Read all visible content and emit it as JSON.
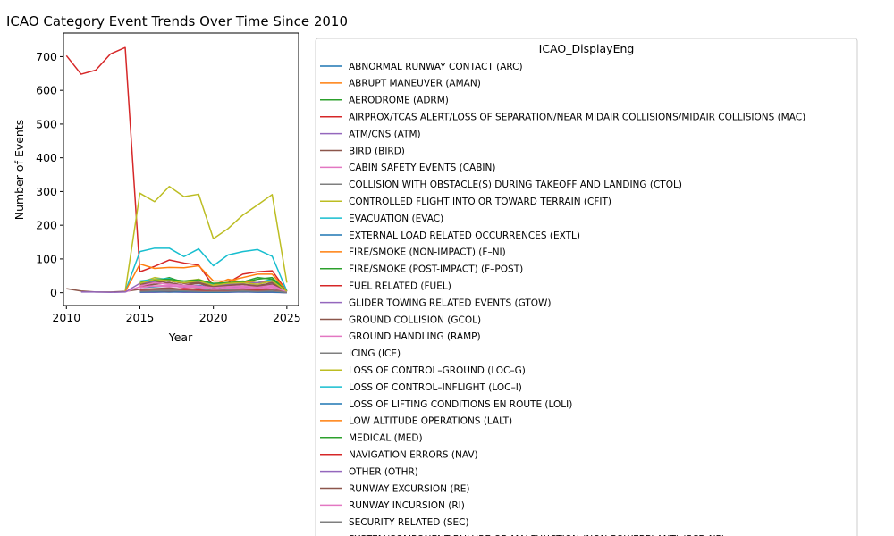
{
  "chart_data": {
    "type": "line",
    "title": "ICAO Category Event Trends Over Time Since 2010",
    "xlabel": "Year",
    "ylabel": "Number of Events",
    "xlim": [
      2009.8,
      2025.8
    ],
    "ylim": [
      -38,
      770
    ],
    "xticks": [
      2010,
      2015,
      2020,
      2025
    ],
    "yticks": [
      0,
      100,
      200,
      300,
      400,
      500,
      600,
      700
    ],
    "legend_title": "ICAO_DisplayEng",
    "legend_position": "right, outside plot",
    "grid": false,
    "series": [
      {
        "name": "ABNORMAL RUNWAY CONTACT (ARC)",
        "color": "#1f77b4",
        "x": [
          2015,
          2016,
          2017,
          2018,
          2019,
          2020,
          2021,
          2022,
          2023,
          2024,
          2025
        ],
        "y": [
          15,
          18,
          20,
          17,
          22,
          14,
          18,
          16,
          20,
          22,
          3
        ]
      },
      {
        "name": "ABRUPT MANEUVER (AMAN)",
        "color": "#ff7f0e",
        "x": [
          2015,
          2016,
          2017,
          2018,
          2019,
          2020,
          2021,
          2022,
          2023,
          2024,
          2025
        ],
        "y": [
          2,
          3,
          2,
          3,
          2,
          2,
          3,
          2,
          3,
          2,
          0
        ]
      },
      {
        "name": "AERODROME (ADRM)",
        "color": "#2ca02c",
        "x": [
          2015,
          2016,
          2017,
          2018,
          2019,
          2020,
          2021,
          2022,
          2023,
          2024,
          2025
        ],
        "y": [
          25,
          35,
          45,
          30,
          40,
          20,
          25,
          30,
          40,
          45,
          5
        ]
      },
      {
        "name": "AIRPROX/TCAS ALERT/LOSS OF SEPARATION/NEAR MIDAIR COLLISIONS/MIDAIR COLLISIONS (MAC)",
        "color": "#d62728",
        "x": [
          2010,
          2011,
          2012,
          2013,
          2014,
          2015,
          2016,
          2017,
          2018,
          2019,
          2020,
          2021,
          2022,
          2023,
          2024,
          2025
        ],
        "y": [
          703,
          648,
          660,
          708,
          727,
          62,
          78,
          97,
          88,
          82,
          20,
          30,
          55,
          62,
          65,
          5
        ]
      },
      {
        "name": "ATM/CNS (ATM)",
        "color": "#9467bd",
        "x": [
          2015,
          2016,
          2017,
          2018,
          2019,
          2020,
          2021,
          2022,
          2023,
          2024,
          2025
        ],
        "y": [
          20,
          25,
          30,
          22,
          28,
          15,
          20,
          25,
          22,
          28,
          3
        ]
      },
      {
        "name": "BIRD (BIRD)",
        "color": "#8c564b",
        "x": [
          2010,
          2011,
          2012,
          2013,
          2014,
          2015,
          2016,
          2017,
          2018,
          2019,
          2020,
          2021,
          2022,
          2023,
          2024,
          2025
        ],
        "y": [
          12,
          5,
          2,
          2,
          4,
          10,
          12,
          14,
          10,
          12,
          8,
          10,
          12,
          14,
          16,
          2
        ]
      },
      {
        "name": "CABIN SAFETY EVENTS (CABIN)",
        "color": "#e377c2",
        "x": [
          2014,
          2015,
          2016,
          2017,
          2018,
          2019,
          2020,
          2021,
          2022,
          2023,
          2024,
          2025
        ],
        "y": [
          2,
          18,
          20,
          22,
          15,
          18,
          10,
          14,
          16,
          12,
          15,
          2
        ]
      },
      {
        "name": "COLLISION WITH OBSTACLE(S) DURING TAKEOFF AND LANDING (CTOL)",
        "color": "#7f7f7f",
        "x": [
          2015,
          2016,
          2017,
          2018,
          2019,
          2020,
          2021,
          2022,
          2023,
          2024,
          2025
        ],
        "y": [
          5,
          6,
          8,
          5,
          7,
          4,
          6,
          5,
          7,
          6,
          1
        ]
      },
      {
        "name": "CONTROLLED FLIGHT INTO OR TOWARD TERRAIN (CFIT)",
        "color": "#bcbd22",
        "x": [
          2014,
          2015,
          2016,
          2017,
          2018,
          2019,
          2020,
          2021,
          2022,
          2023,
          2024,
          2025
        ],
        "y": [
          4,
          295,
          270,
          315,
          285,
          292,
          160,
          190,
          230,
          260,
          291,
          30
        ]
      },
      {
        "name": "EVACUATION (EVAC)",
        "color": "#17becf",
        "x": [
          2014,
          2015,
          2016,
          2017,
          2018,
          2019,
          2020,
          2021,
          2022,
          2023,
          2024,
          2025
        ],
        "y": [
          3,
          122,
          132,
          132,
          107,
          130,
          80,
          112,
          122,
          128,
          108,
          5
        ]
      },
      {
        "name": "EXTERNAL LOAD RELATED OCCURRENCES (EXTL)",
        "color": "#1f77b4",
        "x": [
          2015,
          2016,
          2017,
          2018,
          2019,
          2020,
          2021,
          2022,
          2023,
          2024,
          2025
        ],
        "y": [
          3,
          4,
          3,
          5,
          4,
          3,
          4,
          3,
          5,
          4,
          1
        ]
      },
      {
        "name": "FIRE/SMOKE (NON-IMPACT) (F–NI)",
        "color": "#ff7f0e",
        "x": [
          2014,
          2015,
          2016,
          2017,
          2018,
          2019,
          2020,
          2021,
          2022,
          2023,
          2024,
          2025
        ],
        "y": [
          3,
          85,
          72,
          75,
          74,
          80,
          35,
          35,
          45,
          55,
          55,
          5
        ]
      },
      {
        "name": "FIRE/SMOKE (POST-IMPACT) (F–POST)",
        "color": "#2ca02c",
        "x": [
          2015,
          2016,
          2017,
          2018,
          2019,
          2020,
          2021,
          2022,
          2023,
          2024,
          2025
        ],
        "y": [
          4,
          5,
          6,
          4,
          5,
          3,
          4,
          5,
          4,
          5,
          1
        ]
      },
      {
        "name": "FUEL RELATED (FUEL)",
        "color": "#d62728",
        "x": [
          2015,
          2016,
          2017,
          2018,
          2019,
          2020,
          2021,
          2022,
          2023,
          2024,
          2025
        ],
        "y": [
          8,
          10,
          8,
          12,
          10,
          6,
          8,
          10,
          12,
          10,
          2
        ]
      },
      {
        "name": "GLIDER TOWING RELATED EVENTS (GTOW)",
        "color": "#9467bd",
        "x": [
          2015,
          2016,
          2017,
          2018,
          2019,
          2020,
          2021,
          2022,
          2023,
          2024,
          2025
        ],
        "y": [
          1,
          1,
          2,
          1,
          1,
          1,
          1,
          2,
          1,
          1,
          0
        ]
      },
      {
        "name": "GROUND COLLISION (GCOL)",
        "color": "#8c564b",
        "x": [
          2015,
          2016,
          2017,
          2018,
          2019,
          2020,
          2021,
          2022,
          2023,
          2024,
          2025
        ],
        "y": [
          20,
          25,
          30,
          22,
          28,
          15,
          22,
          25,
          18,
          25,
          3
        ]
      },
      {
        "name": "GROUND HANDLING (RAMP)",
        "color": "#e377c2",
        "x": [
          2015,
          2016,
          2017,
          2018,
          2019,
          2020,
          2021,
          2022,
          2023,
          2024,
          2025
        ],
        "y": [
          15,
          20,
          18,
          20,
          15,
          10,
          12,
          15,
          12,
          18,
          2
        ]
      },
      {
        "name": "ICING (ICE)",
        "color": "#7f7f7f",
        "x": [
          2015,
          2016,
          2017,
          2018,
          2019,
          2020,
          2021,
          2022,
          2023,
          2024,
          2025
        ],
        "y": [
          6,
          8,
          10,
          8,
          12,
          5,
          8,
          10,
          8,
          9,
          1
        ]
      },
      {
        "name": "LOSS OF CONTROL–GROUND (LOC–G)",
        "color": "#bcbd22",
        "x": [
          2015,
          2016,
          2017,
          2018,
          2019,
          2020,
          2021,
          2022,
          2023,
          2024,
          2025
        ],
        "y": [
          30,
          45,
          38,
          35,
          40,
          25,
          30,
          35,
          30,
          38,
          4
        ]
      },
      {
        "name": "LOSS OF CONTROL–INFLIGHT (LOC–I)",
        "color": "#17becf",
        "x": [
          2015,
          2016,
          2017,
          2018,
          2019,
          2020,
          2021,
          2022,
          2023,
          2024,
          2025
        ],
        "y": [
          35,
          40,
          42,
          30,
          38,
          25,
          28,
          32,
          30,
          40,
          5
        ]
      },
      {
        "name": "LOSS OF LIFTING CONDITIONS EN ROUTE (LOLI)",
        "color": "#1f77b4",
        "x": [
          2015,
          2016,
          2017,
          2018,
          2019,
          2020,
          2021,
          2022,
          2023,
          2024,
          2025
        ],
        "y": [
          2,
          3,
          2,
          3,
          2,
          1,
          2,
          3,
          2,
          2,
          0
        ]
      },
      {
        "name": "LOW ALTITUDE OPERATIONS (LALT)",
        "color": "#ff7f0e",
        "x": [
          2015,
          2016,
          2017,
          2018,
          2019,
          2020,
          2021,
          2022,
          2023,
          2024,
          2025
        ],
        "y": [
          20,
          30,
          35,
          28,
          32,
          22,
          40,
          32,
          30,
          35,
          4
        ]
      },
      {
        "name": "MEDICAL (MED)",
        "color": "#2ca02c",
        "x": [
          2015,
          2016,
          2017,
          2018,
          2019,
          2020,
          2021,
          2022,
          2023,
          2024,
          2025
        ],
        "y": [
          30,
          38,
          40,
          35,
          38,
          28,
          30,
          32,
          45,
          40,
          5
        ]
      },
      {
        "name": "NAVIGATION ERRORS (NAV)",
        "color": "#d62728",
        "x": [
          2015,
          2016,
          2017,
          2018,
          2019,
          2020,
          2021,
          2022,
          2023,
          2024,
          2025
        ],
        "y": [
          5,
          6,
          5,
          7,
          6,
          4,
          5,
          6,
          7,
          6,
          1
        ]
      },
      {
        "name": "OTHER (OTHR)",
        "color": "#9467bd",
        "x": [
          2011,
          2012,
          2013,
          2014,
          2015,
          2016,
          2017,
          2018,
          2019,
          2020,
          2021,
          2022,
          2023,
          2024,
          2025
        ],
        "y": [
          2,
          2,
          1,
          2,
          28,
          32,
          35,
          30,
          33,
          20,
          25,
          28,
          30,
          32,
          4
        ]
      },
      {
        "name": "RUNWAY EXCURSION (RE)",
        "color": "#8c564b",
        "x": [
          2015,
          2016,
          2017,
          2018,
          2019,
          2020,
          2021,
          2022,
          2023,
          2024,
          2025
        ],
        "y": [
          25,
          30,
          35,
          28,
          30,
          18,
          22,
          25,
          20,
          30,
          3
        ]
      },
      {
        "name": "RUNWAY INCURSION (RI)",
        "color": "#e377c2",
        "x": [
          2015,
          2016,
          2017,
          2018,
          2019,
          2020,
          2021,
          2022,
          2023,
          2024,
          2025
        ],
        "y": [
          20,
          30,
          25,
          22,
          20,
          15,
          18,
          20,
          16,
          22,
          2
        ]
      },
      {
        "name": "SECURITY RELATED (SEC)",
        "color": "#7f7f7f",
        "x": [
          2015,
          2016,
          2017,
          2018,
          2019,
          2020,
          2021,
          2022,
          2023,
          2024,
          2025
        ],
        "y": [
          4,
          5,
          6,
          5,
          4,
          3,
          4,
          5,
          4,
          5,
          1
        ]
      },
      {
        "name": "SYSTEM/COMPONENT FAILURE OR MALFUNCTION (NON-POWERPLANT) (SCF–NP)",
        "color": "#bcbd22",
        "x": [
          2015,
          2016,
          2017,
          2018,
          2019,
          2020,
          2021,
          2022,
          2023,
          2024,
          2025
        ],
        "y": [
          28,
          40,
          35,
          30,
          35,
          22,
          28,
          30,
          25,
          35,
          4
        ]
      }
    ]
  }
}
